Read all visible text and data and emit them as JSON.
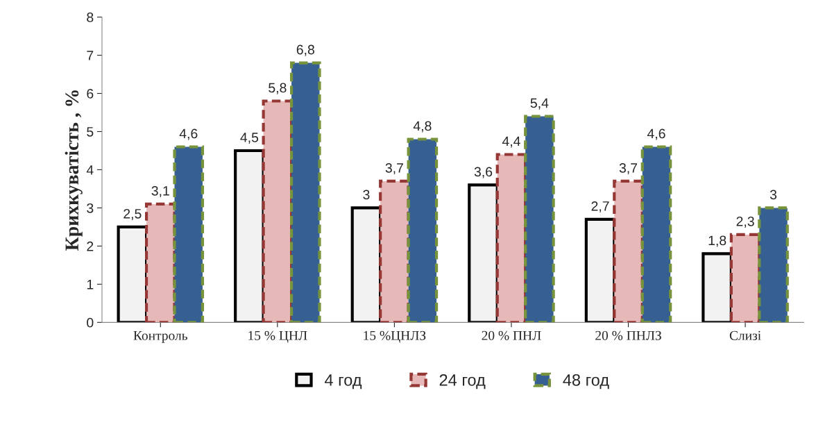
{
  "chart_data": {
    "type": "bar",
    "ylabel": "Крихкуватість , %",
    "categories": [
      "Контроль",
      "15 % ЦНЛ",
      "15 %ЦНЛЗ",
      "20 % ПНЛ",
      "20 % ПНЛЗ",
      "Слизі"
    ],
    "series": [
      {
        "name": "4 год",
        "color": "#f2f2f2",
        "values": [
          2.5,
          4.5,
          3,
          3.6,
          2.7,
          1.8
        ],
        "value_labels": [
          "2,5",
          "4,5",
          "3",
          "3,6",
          "2,7",
          "1,8"
        ]
      },
      {
        "name": "24 год",
        "color": "#e6b9b8",
        "values": [
          3.1,
          5.8,
          3.7,
          4.4,
          3.7,
          2.3
        ],
        "value_labels": [
          "3,1",
          "5,8",
          "3,7",
          "4,4",
          "3,7",
          "2,3"
        ]
      },
      {
        "name": "48 год",
        "color": "#376092",
        "values": [
          4.6,
          6.8,
          4.8,
          5.4,
          4.6,
          3
        ],
        "value_labels": [
          "4,6",
          "6,8",
          "4,8",
          "5,4",
          "4,6",
          "3"
        ]
      }
    ],
    "ylim": [
      0,
      8
    ],
    "yticks": [
      0,
      1,
      2,
      3,
      4,
      5,
      6,
      7,
      8
    ],
    "grid": false,
    "legend": "bottom"
  }
}
